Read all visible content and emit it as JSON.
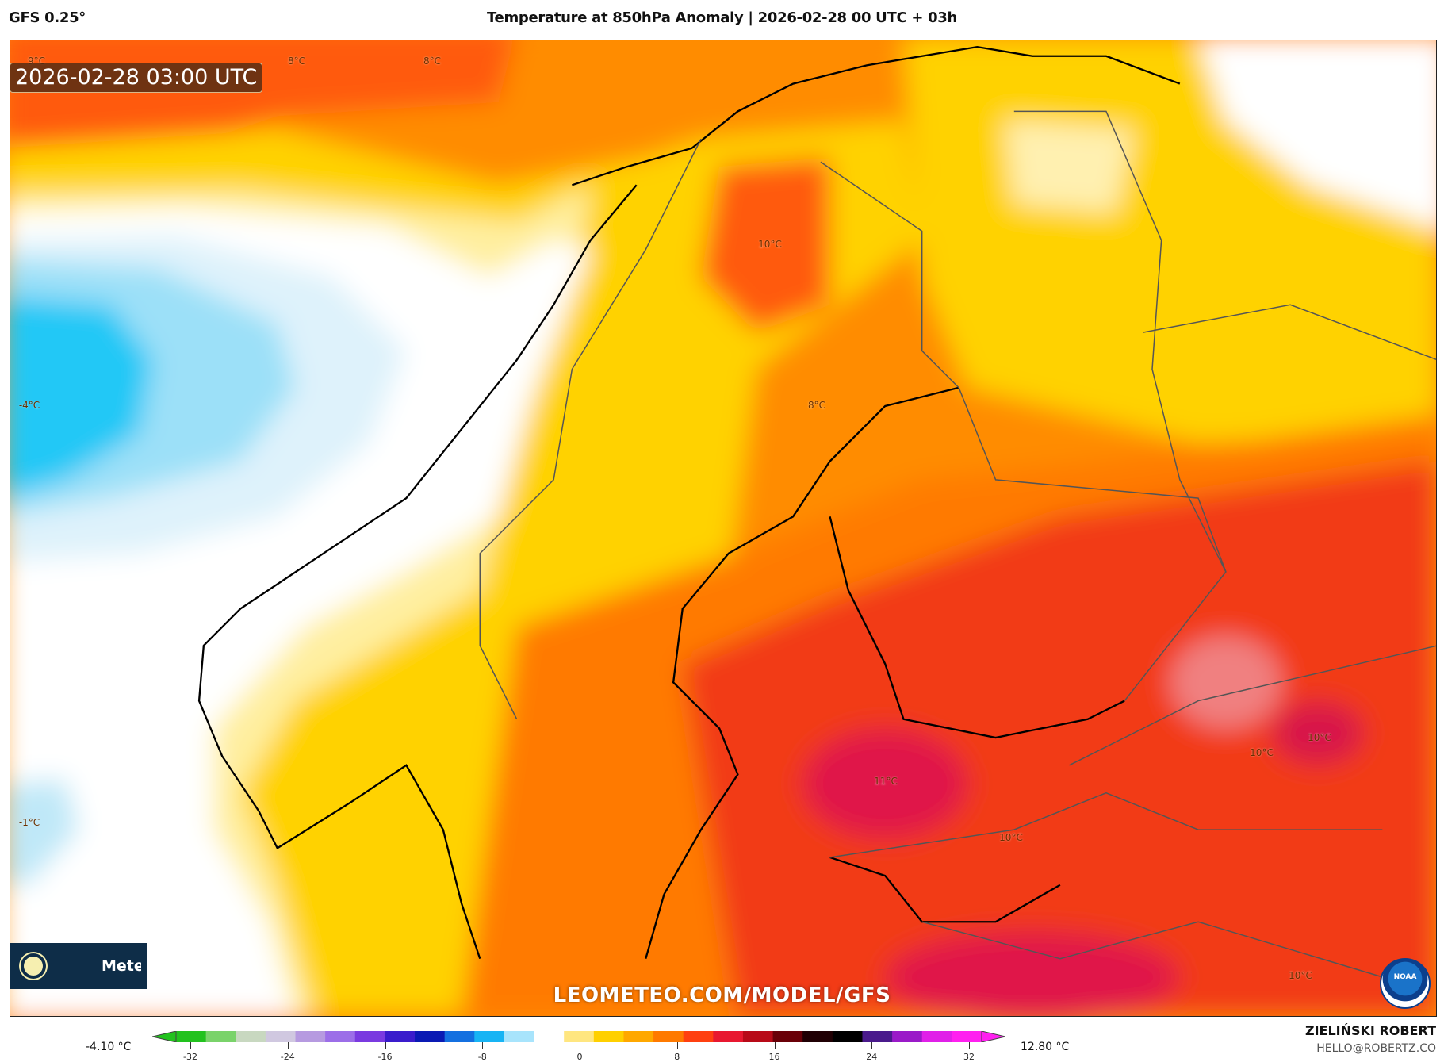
{
  "header": {
    "model": "GFS 0.25°",
    "title": "Temperature at 850hPa Anomaly | 2026-02-28 00 UTC + 03h"
  },
  "timestamp": "2026-02-28 03:00 UTC",
  "contour_labels": [
    "9°C",
    "8°C",
    "8°C",
    "10°C",
    "-4°C",
    "8°C",
    "-1°C",
    "11°C",
    "10°C",
    "10°C",
    "10°C",
    "10°C"
  ],
  "brand_logo": {
    "icon": "sun-icon",
    "text": "Meteo"
  },
  "watermark": "LEOMETEO.COM/MODEL/GFS",
  "noaa_logo": "NOAA",
  "colorbar": {
    "min_label": "-4.10 °C",
    "max_label": "12.80 °C",
    "ticks": [
      "-32",
      "-24",
      "-16",
      "-8",
      "0",
      "8",
      "16",
      "24",
      "32"
    ],
    "colors": [
      "#22c21e",
      "#7ad36a",
      "#c8d8c0",
      "#d0c8e0",
      "#b69ae0",
      "#9c6ee8",
      "#7a3ae0",
      "#3a1ccc",
      "#0a1ab4",
      "#1470e0",
      "#18b4f4",
      "#a8e4fc",
      "#ffffff",
      "#ffe680",
      "#ffd000",
      "#ffa800",
      "#ff7a00",
      "#ff4010",
      "#e81830",
      "#b80a18",
      "#6a0008",
      "#200004",
      "#000000",
      "#4a1a8c",
      "#9a1ac8",
      "#e020e8",
      "#ff20f0"
    ]
  },
  "author": {
    "name": "ZIELIŃSKI ROBERT",
    "email": "HELLO@ROBERTZ.CO"
  }
}
